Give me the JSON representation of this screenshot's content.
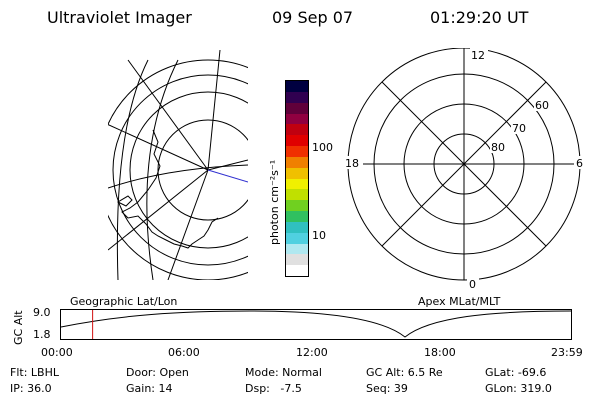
{
  "header": {
    "instrument": "Ultraviolet Imager",
    "date": "09 Sep 07",
    "time": "01:29:20 UT"
  },
  "colorbar": {
    "unit": "photon cm⁻²s⁻¹",
    "tick_high": "100",
    "tick_low": "10",
    "colors": [
      "#ffffff",
      "#e0e0e0",
      "#b0e8f0",
      "#50d0e0",
      "#30c0c0",
      "#30c060",
      "#70d020",
      "#c0e000",
      "#f0f000",
      "#f0c000",
      "#f08000",
      "#f03000",
      "#e00000",
      "#c00010",
      "#900040",
      "#60003a",
      "#300050",
      "#000040"
    ]
  },
  "left_map": {
    "caption": "Geographic Lat/Lon"
  },
  "right_map": {
    "caption": "Apex MLat/MLT",
    "mlt_top": "12",
    "mlt_left": "18",
    "mlt_right": "6",
    "mlt_bottom": "0",
    "lat_60": "60",
    "lat_70": "70",
    "lat_80": "80"
  },
  "altitude_plot": {
    "axis_label": "GC Alt",
    "y_max": "9.0",
    "y_min": "1.8",
    "x_ticks": [
      "00:00",
      "06:00",
      "12:00",
      "18:00",
      "23:59"
    ],
    "current_time_fraction": 0.062
  },
  "footer": {
    "row1": {
      "filter": "Flt: LBHL",
      "door": "Door: Open",
      "mode": "Mode: Normal",
      "gc_alt": "GC Alt: 6.5 Re",
      "glat": "GLat: -69.6"
    },
    "row2": {
      "ip": "IP: 36.0",
      "gain": "Gain: 14",
      "dsp": "Dsp:   -7.5",
      "seq": "Seq: 39",
      "glon": "GLon: 319.0"
    }
  }
}
